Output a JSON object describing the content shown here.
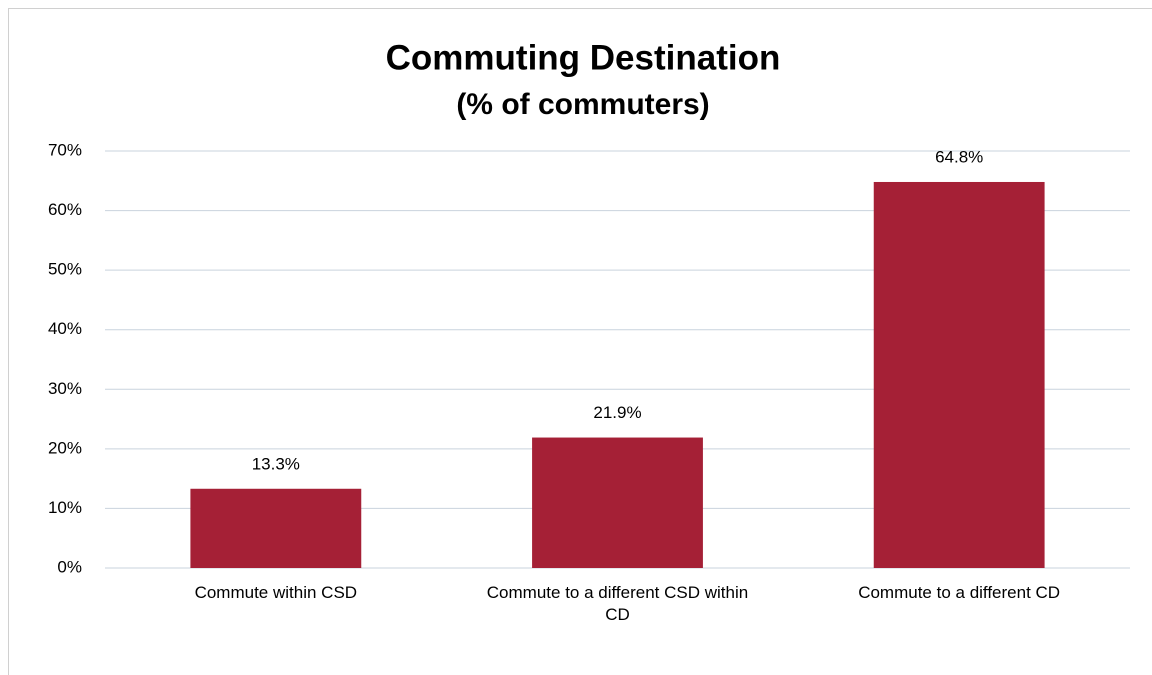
{
  "chart_data": {
    "type": "bar",
    "title": "Commuting Destination",
    "subtitle": "(% of commuters)",
    "categories": [
      "Commute within CSD",
      "Commute to a different CSD within CD",
      "Commute to a different CD"
    ],
    "values": [
      13.3,
      21.9,
      64.8
    ],
    "value_labels": [
      "13.3%",
      "21.9%",
      "64.8%"
    ],
    "color": "#a52036",
    "ylim": [
      0,
      70
    ],
    "yticks": [
      {
        "value": 0,
        "label": "0%"
      },
      {
        "value": 10,
        "label": "10%"
      },
      {
        "value": 20,
        "label": "20%"
      },
      {
        "value": 30,
        "label": "30%"
      },
      {
        "value": 40,
        "label": "40%"
      },
      {
        "value": 50,
        "label": "50%"
      },
      {
        "value": 60,
        "label": "60%"
      },
      {
        "value": 70,
        "label": "70%"
      }
    ],
    "grid": true
  }
}
